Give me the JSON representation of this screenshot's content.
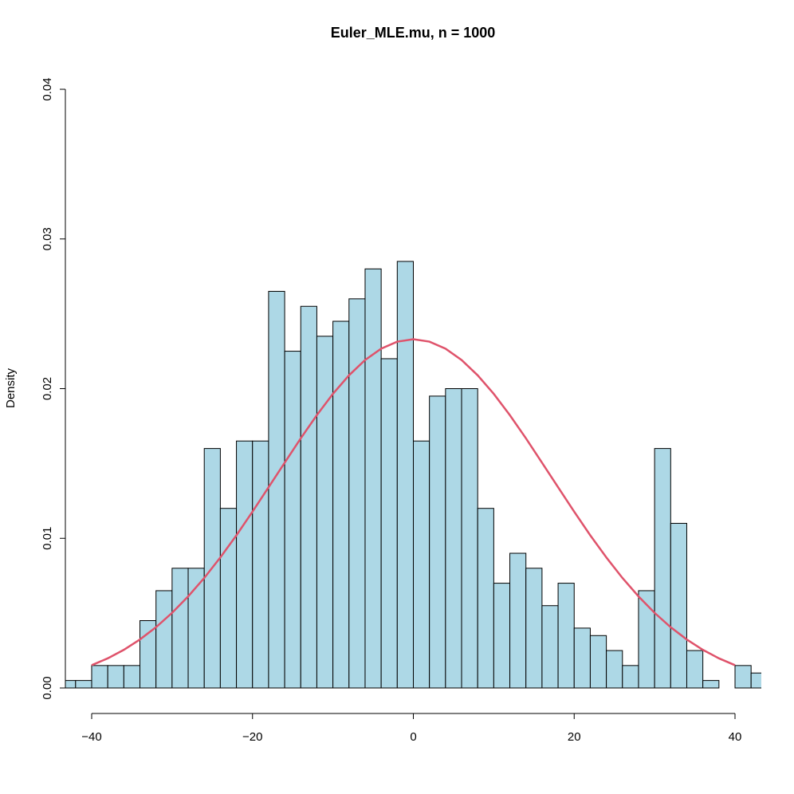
{
  "chart_data": {
    "type": "histogram",
    "title": "Euler_MLE.mu, n = 1000",
    "ylabel": "Density",
    "bins": [
      -44,
      -42,
      -40,
      -38,
      -36,
      -34,
      -32,
      -30,
      -28,
      -26,
      -24,
      -22,
      -20,
      -18,
      -16,
      -14,
      -12,
      -10,
      -8,
      -6,
      -4,
      -2,
      0,
      2,
      4,
      6,
      8,
      10,
      12,
      14,
      16,
      18,
      20,
      22,
      24,
      26,
      28,
      30,
      32,
      34,
      36,
      38,
      40,
      42,
      44
    ],
    "values": [
      0.0005,
      0.0005,
      0.0015,
      0.0015,
      0.0015,
      0.0045,
      0.0065,
      0.008,
      0.008,
      0.016,
      0.012,
      0.0165,
      0.0165,
      0.0265,
      0.0225,
      0.0255,
      0.0235,
      0.0245,
      0.026,
      0.028,
      0.022,
      0.0285,
      0.0165,
      0.0195,
      0.02,
      0.02,
      0.012,
      0.007,
      0.009,
      0.008,
      0.0055,
      0.007,
      0.004,
      0.0035,
      0.0025,
      0.0015,
      0.0065,
      0.016,
      0.011,
      0.0025,
      0.0005,
      0,
      0.0015,
      0.001
    ],
    "color": "#add8e6",
    "curve": {
      "color": "#df536b",
      "x": [
        -40,
        -38,
        -36,
        -34,
        -32,
        -30,
        -28,
        -26,
        -24,
        -22,
        -20,
        -18,
        -16,
        -14,
        -12,
        -10,
        -8,
        -6,
        -4,
        -2,
        0,
        2,
        4,
        6,
        8,
        10,
        12,
        14,
        16,
        18,
        20,
        22,
        24,
        26,
        28,
        30,
        32,
        34,
        36,
        38,
        40
      ],
      "values": [
        0.00152,
        0.00198,
        0.00255,
        0.00324,
        0.00406,
        0.00502,
        0.00612,
        0.00735,
        0.00872,
        0.0102,
        0.01178,
        0.01341,
        0.01505,
        0.01668,
        0.01823,
        0.01965,
        0.02089,
        0.02191,
        0.02267,
        0.02314,
        0.0233,
        0.02314,
        0.02267,
        0.02191,
        0.02089,
        0.01965,
        0.01823,
        0.01668,
        0.01505,
        0.01341,
        0.01178,
        0.0102,
        0.00872,
        0.00735,
        0.00612,
        0.00502,
        0.00406,
        0.00324,
        0.00255,
        0.00198,
        0.00152
      ]
    },
    "xlim": [
      -43.27,
      43.27
    ],
    "xticks": [
      -40,
      -20,
      0,
      20,
      40
    ],
    "ylim": [
      0,
      0.04
    ],
    "yticks": [
      {
        "value": 0,
        "label": "0.00"
      },
      {
        "value": 0.01,
        "label": "0.01"
      },
      {
        "value": 0.02,
        "label": "0.02"
      },
      {
        "value": 0.03,
        "label": "0.03"
      },
      {
        "value": 0.04,
        "label": "0.04"
      }
    ]
  }
}
